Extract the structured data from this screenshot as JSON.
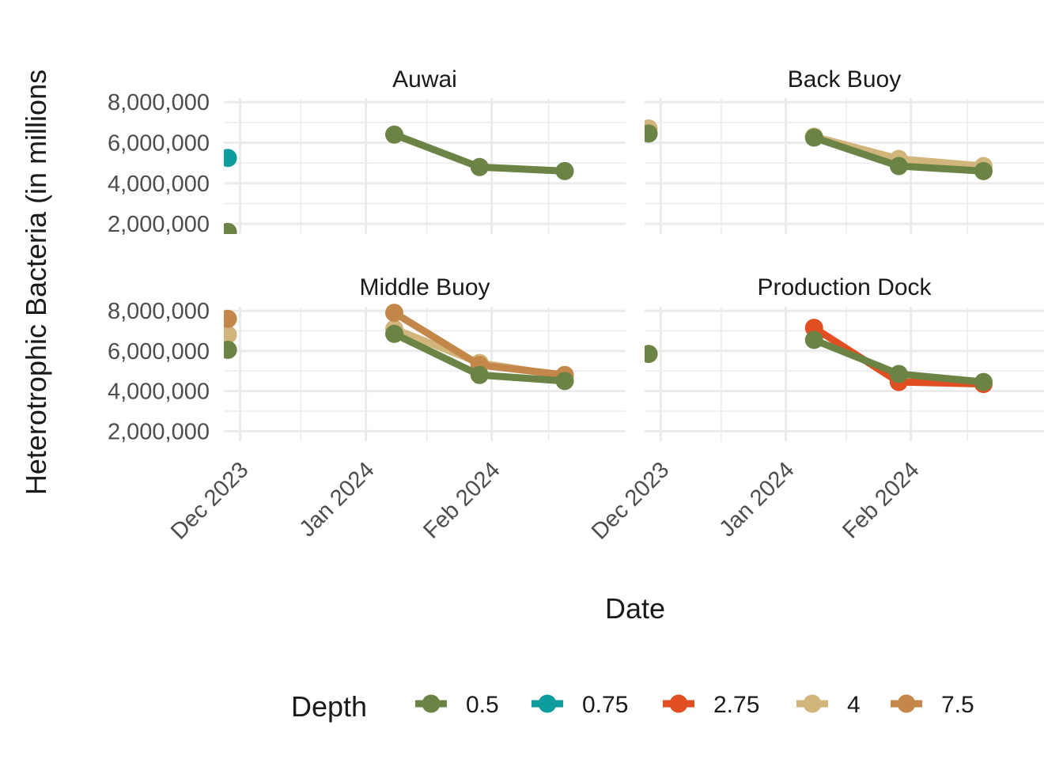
{
  "colors": {
    "0.5": "#6b8445",
    "0.75": "#0f9c9c",
    "2.75": "#e04e21",
    "4": "#d2b57b",
    "7.5": "#c4874a",
    "grid": "#ebebeb"
  },
  "chart_data": {
    "type": "line",
    "xlabel": "Date",
    "ylabel": "Heterotrophic Bacteria (in millions",
    "legend": {
      "title": "Depth",
      "position": "bottom",
      "entries": [
        "0.5",
        "0.75",
        "2.75",
        "4",
        "7.5"
      ]
    },
    "x_ticks": [
      "Dec 2023",
      "Jan 2024",
      "Feb 2024"
    ],
    "x_range": [
      "2023-11-27",
      "2024-03-05"
    ],
    "y_ticks": [
      "2,000,000",
      "4,000,000",
      "6,000,000",
      "8,000,000"
    ],
    "y_tick_values": [
      2000000,
      4000000,
      6000000,
      8000000
    ],
    "y_range": [
      1500000,
      8200000
    ],
    "grid": true,
    "panels": [
      {
        "title": "Auwai",
        "series": [
          {
            "depth": "0.5",
            "points": [
              [
                "2023-11-28",
                1600000
              ],
              [
                "2024-01-08",
                6400000
              ],
              [
                "2024-01-29",
                4800000
              ],
              [
                "2024-02-19",
                4600000
              ]
            ]
          },
          {
            "depth": "0.75",
            "points": [
              [
                "2023-11-28",
                5250000
              ]
            ]
          }
        ]
      },
      {
        "title": "Back Buoy",
        "series": [
          {
            "depth": "4",
            "points": [
              [
                "2023-11-28",
                6700000
              ],
              [
                "2024-01-08",
                6300000
              ],
              [
                "2024-01-29",
                5200000
              ],
              [
                "2024-02-19",
                4850000
              ]
            ]
          },
          {
            "depth": "0.5",
            "points": [
              [
                "2023-11-28",
                6450000
              ],
              [
                "2024-01-08",
                6250000
              ],
              [
                "2024-01-29",
                4850000
              ],
              [
                "2024-02-19",
                4600000
              ]
            ]
          }
        ]
      },
      {
        "title": "Middle Buoy",
        "series": [
          {
            "depth": "4",
            "points": [
              [
                "2023-11-28",
                6800000
              ],
              [
                "2024-01-08",
                7100000
              ],
              [
                "2024-01-29",
                5400000
              ],
              [
                "2024-02-19",
                4750000
              ]
            ]
          },
          {
            "depth": "7.5",
            "points": [
              [
                "2023-11-28",
                7600000
              ],
              [
                "2024-01-08",
                7900000
              ],
              [
                "2024-01-29",
                5300000
              ],
              [
                "2024-02-19",
                4800000
              ]
            ]
          },
          {
            "depth": "0.5",
            "points": [
              [
                "2023-11-28",
                6050000
              ],
              [
                "2024-01-08",
                6850000
              ],
              [
                "2024-01-29",
                4800000
              ],
              [
                "2024-02-19",
                4500000
              ]
            ]
          }
        ]
      },
      {
        "title": "Production Dock",
        "series": [
          {
            "depth": "2.75",
            "points": [
              [
                "2024-01-08",
                7150000
              ],
              [
                "2024-01-29",
                4450000
              ],
              [
                "2024-02-19",
                4350000
              ]
            ]
          },
          {
            "depth": "0.5",
            "points": [
              [
                "2023-11-28",
                5850000
              ],
              [
                "2024-01-08",
                6550000
              ],
              [
                "2024-01-29",
                4850000
              ],
              [
                "2024-02-19",
                4450000
              ]
            ]
          }
        ]
      }
    ]
  }
}
